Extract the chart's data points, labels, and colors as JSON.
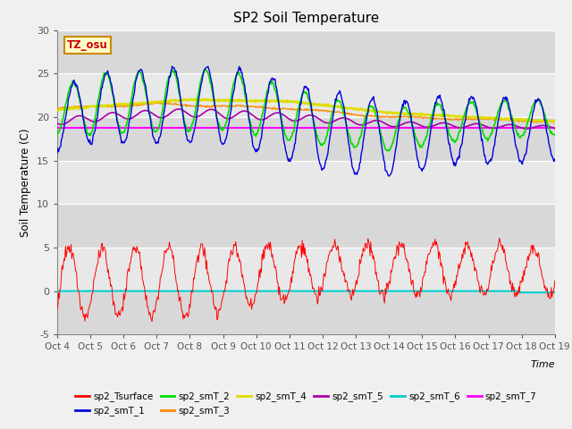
{
  "title": "SP2 Soil Temperature",
  "ylabel": "Soil Temperature (C)",
  "xlabel": "Time",
  "tz_label": "TZ_osu",
  "x_tick_labels": [
    "Oct 4",
    "Oct 5",
    "Oct 6",
    "Oct 7",
    "Oct 8",
    "Oct 9",
    "Oct 10",
    "Oct 11",
    "Oct 12",
    "Oct 13",
    "Oct 14",
    "Oct 15",
    "Oct 16",
    "Oct 17",
    "Oct 18",
    "Oct 19"
  ],
  "ylim": [
    -5,
    30
  ],
  "yticks": [
    -5,
    0,
    5,
    10,
    15,
    20,
    25,
    30
  ],
  "series_colors": {
    "sp2_Tsurface": "#ff0000",
    "sp2_smT_1": "#0000dd",
    "sp2_smT_2": "#00dd00",
    "sp2_smT_3": "#ff8800",
    "sp2_smT_4": "#dddd00",
    "sp2_smT_5": "#aa00aa",
    "sp2_smT_6": "#00cccc",
    "sp2_smT_7": "#ff00ff"
  },
  "background_color": "#f0f0f0",
  "plot_bg_upper": "#d8d8d8",
  "plot_bg_lower": "#e8e8e8"
}
